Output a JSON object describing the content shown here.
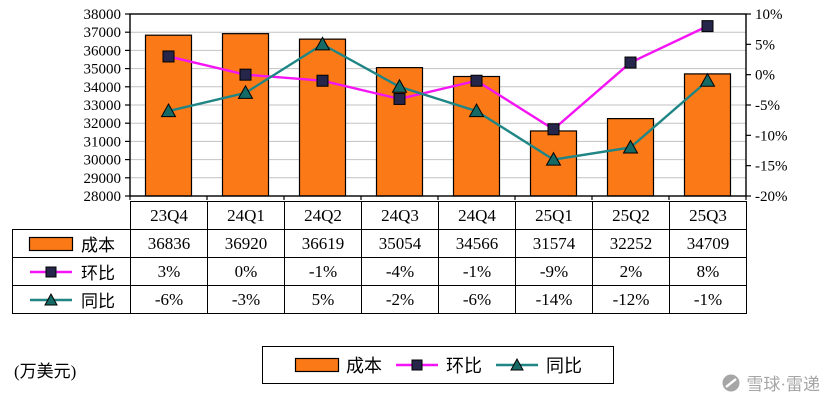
{
  "chart_data": {
    "type": "combo-bar-line",
    "title": "",
    "categories": [
      "23Q4",
      "24Q1",
      "24Q2",
      "24Q3",
      "24Q4",
      "25Q1",
      "25Q2",
      "25Q3"
    ],
    "series": [
      {
        "name": "成本",
        "type": "bar",
        "axis": "left",
        "values": [
          36836,
          36920,
          36619,
          35054,
          34566,
          31574,
          32252,
          34709
        ]
      },
      {
        "name": "环比",
        "type": "line",
        "marker": "square",
        "axis": "right",
        "values": [
          3,
          0,
          -1,
          -4,
          -1,
          -9,
          2,
          8
        ],
        "labels": [
          "3%",
          "0%",
          "-1%",
          "-4%",
          "-1%",
          "-9%",
          "2%",
          "8%"
        ]
      },
      {
        "name": "同比",
        "type": "line",
        "marker": "triangle",
        "axis": "right",
        "values": [
          -6,
          -3,
          5,
          -2,
          -6,
          -14,
          -12,
          -1
        ],
        "labels": [
          "-6%",
          "-3%",
          "5%",
          "-2%",
          "-6%",
          "-14%",
          "-12%",
          "-1%"
        ]
      }
    ],
    "left_axis": {
      "min": 28000,
      "max": 38000,
      "step": 1000
    },
    "right_axis": {
      "min": -20,
      "max": 10,
      "step": 5,
      "suffix": "%"
    },
    "grid": true,
    "legend_position": "bottom",
    "unit_label": "(万美元)"
  },
  "colors": {
    "bar_fill": "#fb7916",
    "qoq_line": "#f414f4",
    "qoq_marker": "#26264a",
    "yoy_line": "#1f8585",
    "yoy_marker": "#156a66",
    "grid": "#c2c2c2",
    "axis": "#000000",
    "watermark": "#a6a6a6"
  },
  "watermark": {
    "text": "雪球·雷递"
  }
}
